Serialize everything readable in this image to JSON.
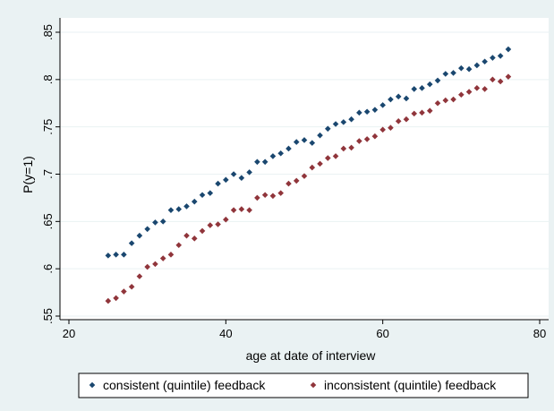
{
  "chart_data": {
    "type": "scatter",
    "title": "",
    "xlabel": "age at date of interview",
    "ylabel": "P(y=1)",
    "xlim": [
      20,
      80
    ],
    "ylim": [
      0.55,
      0.85
    ],
    "xticks": [
      20,
      40,
      60,
      80
    ],
    "xtick_labels": [
      "20",
      "40",
      "60",
      "80"
    ],
    "yticks": [
      0.55,
      0.6,
      0.65,
      0.7,
      0.75,
      0.8,
      0.85
    ],
    "ytick_labels": [
      ".55",
      ".6",
      ".65",
      ".7",
      ".75",
      ".8",
      ".85"
    ],
    "grid": "horizontal",
    "legend_position": "bottom",
    "series": [
      {
        "name": "consistent (quintile) feedback",
        "color": "#1a476f",
        "marker": "diamond",
        "x": [
          25,
          26,
          27,
          28,
          29,
          30,
          31,
          32,
          33,
          34,
          35,
          36,
          37,
          38,
          39,
          40,
          41,
          42,
          43,
          44,
          45,
          46,
          47,
          48,
          49,
          50,
          51,
          52,
          53,
          54,
          55,
          56,
          57,
          58,
          59,
          60,
          61,
          62,
          63,
          64,
          65,
          66,
          67,
          68,
          69,
          70,
          71,
          72,
          73,
          74,
          75,
          76
        ],
        "y": [
          0.614,
          0.615,
          0.615,
          0.627,
          0.635,
          0.642,
          0.649,
          0.65,
          0.662,
          0.663,
          0.666,
          0.671,
          0.678,
          0.68,
          0.69,
          0.694,
          0.7,
          0.696,
          0.702,
          0.713,
          0.713,
          0.719,
          0.722,
          0.727,
          0.734,
          0.736,
          0.733,
          0.741,
          0.748,
          0.753,
          0.755,
          0.758,
          0.765,
          0.766,
          0.768,
          0.773,
          0.779,
          0.782,
          0.78,
          0.79,
          0.791,
          0.795,
          0.799,
          0.806,
          0.807,
          0.812,
          0.811,
          0.815,
          0.819,
          0.823,
          0.825,
          0.832
        ]
      },
      {
        "name": "inconsistent (quintile) feedback",
        "color": "#90353b",
        "marker": "diamond",
        "x": [
          25,
          26,
          27,
          28,
          29,
          30,
          31,
          32,
          33,
          34,
          35,
          36,
          37,
          38,
          39,
          40,
          41,
          42,
          43,
          44,
          45,
          46,
          47,
          48,
          49,
          50,
          51,
          52,
          53,
          54,
          55,
          56,
          57,
          58,
          59,
          60,
          61,
          62,
          63,
          64,
          65,
          66,
          67,
          68,
          69,
          70,
          71,
          72,
          73,
          74,
          75,
          76
        ],
        "y": [
          0.566,
          0.569,
          0.576,
          0.581,
          0.592,
          0.602,
          0.605,
          0.611,
          0.615,
          0.625,
          0.635,
          0.632,
          0.64,
          0.646,
          0.647,
          0.652,
          0.662,
          0.663,
          0.662,
          0.675,
          0.678,
          0.677,
          0.68,
          0.69,
          0.693,
          0.698,
          0.707,
          0.711,
          0.717,
          0.719,
          0.727,
          0.728,
          0.735,
          0.737,
          0.74,
          0.747,
          0.749,
          0.756,
          0.758,
          0.764,
          0.765,
          0.767,
          0.775,
          0.778,
          0.779,
          0.784,
          0.787,
          0.791,
          0.79,
          0.8,
          0.798,
          0.803
        ]
      }
    ]
  }
}
